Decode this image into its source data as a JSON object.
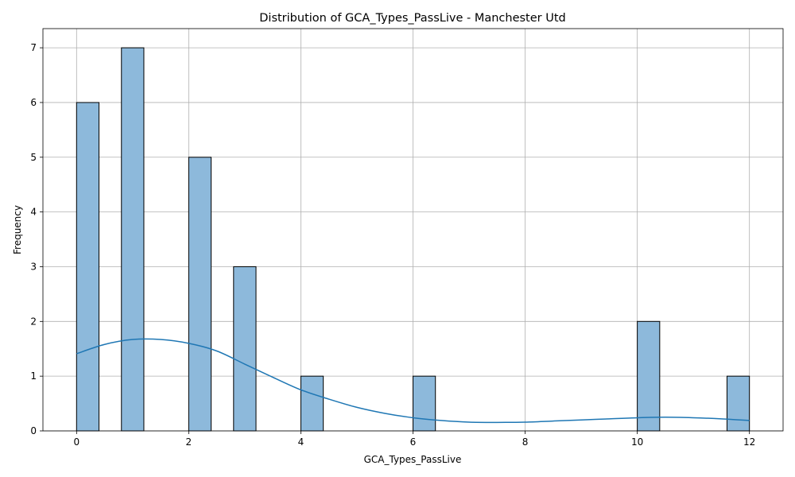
{
  "chart_data": {
    "type": "bar",
    "title": "Distribution of GCA_Types_PassLive - Manchester Utd",
    "xlabel": "GCA_Types_PassLive",
    "ylabel": "Frequency",
    "xlim": [
      -0.6,
      12.6
    ],
    "ylim": [
      0,
      7.35
    ],
    "x_ticks": [
      0,
      2,
      4,
      6,
      8,
      10,
      12
    ],
    "y_ticks": [
      0,
      1,
      2,
      3,
      4,
      5,
      6,
      7
    ],
    "grid": true,
    "bin_width": 0.4,
    "bins": [
      {
        "x_start": 0.0,
        "x_end": 0.4,
        "count": 6
      },
      {
        "x_start": 0.8,
        "x_end": 1.2,
        "count": 7
      },
      {
        "x_start": 2.0,
        "x_end": 2.4,
        "count": 5
      },
      {
        "x_start": 2.8,
        "x_end": 3.2,
        "count": 3
      },
      {
        "x_start": 4.0,
        "x_end": 4.4,
        "count": 1
      },
      {
        "x_start": 6.0,
        "x_end": 6.4,
        "count": 1
      },
      {
        "x_start": 10.0,
        "x_end": 10.4,
        "count": 2
      },
      {
        "x_start": 11.6,
        "x_end": 12.0,
        "count": 1
      }
    ],
    "kde": {
      "x": [
        0,
        0.5,
        1.0,
        1.5,
        2.0,
        2.5,
        3.0,
        3.5,
        4.0,
        4.5,
        5.0,
        5.5,
        6.0,
        6.5,
        7.0,
        7.5,
        8.0,
        8.5,
        9.0,
        9.5,
        10.0,
        10.5,
        11.0,
        11.5,
        12.0
      ],
      "y": [
        1.41,
        1.58,
        1.67,
        1.67,
        1.6,
        1.46,
        1.22,
        0.98,
        0.75,
        0.58,
        0.43,
        0.32,
        0.24,
        0.19,
        0.16,
        0.155,
        0.16,
        0.18,
        0.2,
        0.22,
        0.24,
        0.25,
        0.24,
        0.22,
        0.19
      ]
    },
    "colors": {
      "bar_fill": "#8db9db",
      "bar_edge": "#000000",
      "kde_line": "#1f77b4",
      "grid": "#b0b0b0"
    }
  }
}
